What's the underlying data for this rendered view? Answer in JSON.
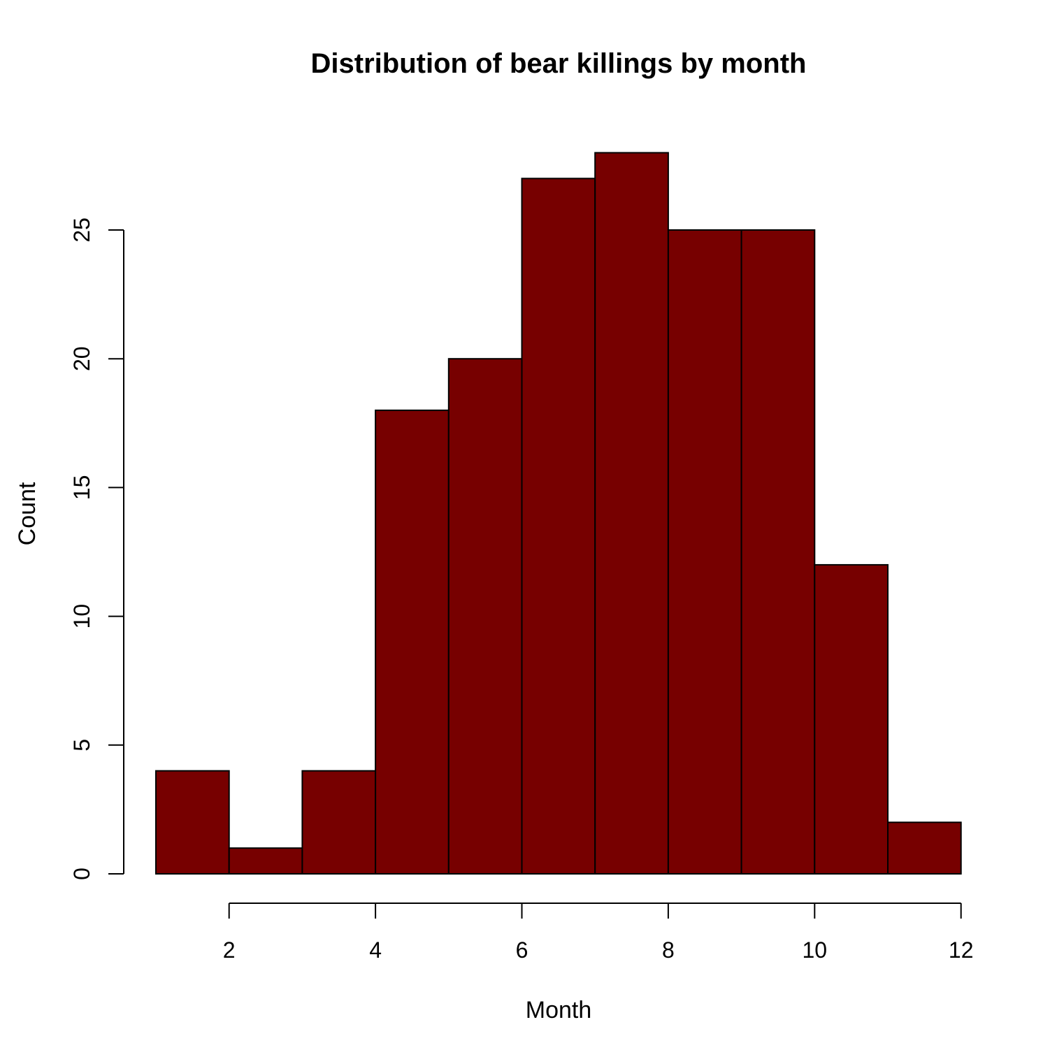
{
  "chart_data": {
    "type": "bar",
    "title": "Distribution of bear killings by month",
    "xlabel": "Month",
    "ylabel": "Count",
    "bins": [
      [
        1,
        2
      ],
      [
        2,
        3
      ],
      [
        3,
        4
      ],
      [
        4,
        5
      ],
      [
        5,
        6
      ],
      [
        6,
        7
      ],
      [
        7,
        8
      ],
      [
        8,
        9
      ],
      [
        9,
        10
      ],
      [
        10,
        11
      ],
      [
        11,
        12
      ]
    ],
    "values": [
      4,
      1,
      4,
      18,
      20,
      27,
      28,
      25,
      25,
      12,
      2
    ],
    "xlim": [
      1,
      12
    ],
    "ylim": [
      0,
      28
    ],
    "x_ticks": [
      2,
      4,
      6,
      8,
      10,
      12
    ],
    "y_ticks": [
      0,
      5,
      10,
      15,
      20,
      25
    ],
    "bar_color": "#770000",
    "grid": false,
    "legend": "none"
  }
}
